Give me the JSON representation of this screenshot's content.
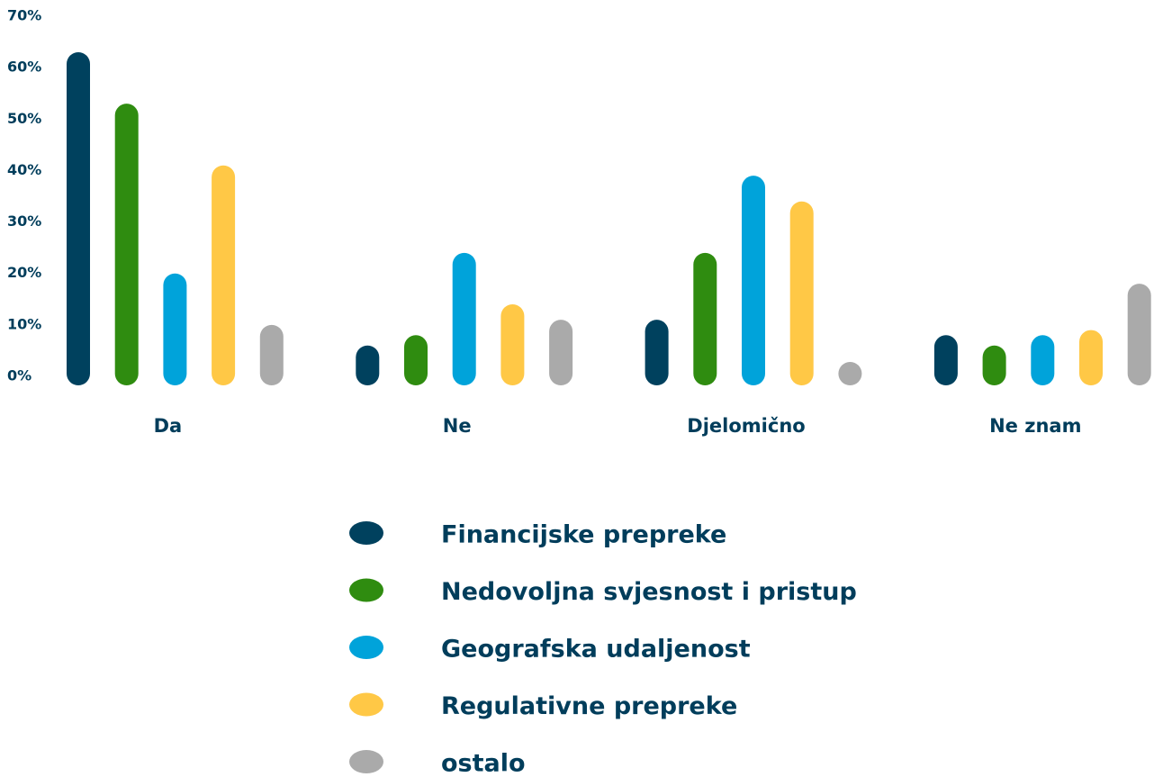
{
  "chart_data": {
    "type": "bar",
    "categories": [
      "Da",
      "Ne",
      "Djelomično",
      "Ne znam"
    ],
    "series": [
      {
        "name": "Financijske prepreke",
        "color": "#00415e",
        "values": [
          63,
          6,
          11,
          8
        ]
      },
      {
        "name": "Nedovoljna svjesnost i pristup",
        "color": "#2f8c10",
        "values": [
          53,
          8,
          24,
          6
        ]
      },
      {
        "name": "Geografska udaljenost",
        "color": "#00a3da",
        "values": [
          20,
          24,
          39,
          8
        ]
      },
      {
        "name": "Regulativne prepreke",
        "color": "#ffc846",
        "values": [
          41,
          14,
          34,
          9
        ]
      },
      {
        "name": "ostalo",
        "color": "#aaaaaa",
        "values": [
          10,
          11,
          2,
          18
        ]
      }
    ],
    "ylim": [
      0,
      70
    ],
    "yticks": [
      {
        "value": 0,
        "label": "0%"
      },
      {
        "value": 10,
        "label": "10%"
      },
      {
        "value": 20,
        "label": "20%"
      },
      {
        "value": 30,
        "label": "30%"
      },
      {
        "value": 40,
        "label": "40%"
      },
      {
        "value": 50,
        "label": "50%"
      },
      {
        "value": 60,
        "label": "60%"
      },
      {
        "value": 70,
        "label": "70%"
      }
    ],
    "grid": false
  }
}
